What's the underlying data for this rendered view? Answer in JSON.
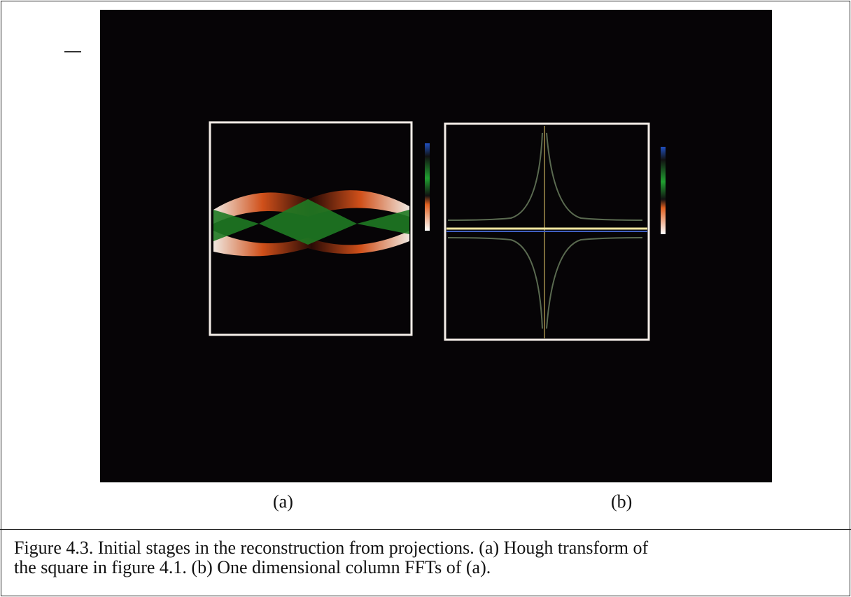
{
  "figure": {
    "panel_labels": [
      "(a)",
      "(b)"
    ],
    "caption_lines": [
      "Figure 4.3. Initial stages in the reconstruction from projections. (a) Hough transform of",
      "the square in figure 4.1. (b) One dimensional column FFTs of (a)."
    ]
  }
}
